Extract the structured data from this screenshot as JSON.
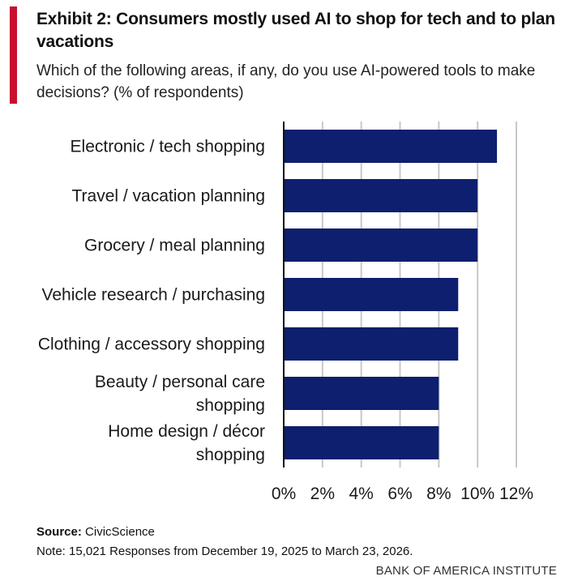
{
  "header": {
    "title": "Exhibit 2: Consumers mostly used AI to shop for tech and to plan vacations",
    "subtitle": "Which of the following areas, if any, do you use AI-powered tools to make decisions? (% of respondents)"
  },
  "footer": {
    "source_label": "Source:",
    "source_value": "CivicScience",
    "note": "Note: 15,021 Responses from December 19, 2025 to March 23, 2026.",
    "brand": "BANK OF AMERICA INSTITUTE"
  },
  "colors": {
    "bar": "#0d1f6e",
    "accent": "#c8102e",
    "grid": "#c8c8c8",
    "axis": "#111111"
  },
  "chart_data": {
    "type": "bar",
    "orientation": "horizontal",
    "title": "Exhibit 2: Consumers mostly used AI to shop for tech and to plan vacations",
    "subtitle": "Which of the following areas, if any, do you use AI-powered tools to make decisions? (% of respondents)",
    "categories": [
      [
        "Electronic / tech shopping"
      ],
      [
        "Travel / vacation planning"
      ],
      [
        "Grocery / meal planning"
      ],
      [
        "Vehicle research / purchasing"
      ],
      [
        "Clothing / accessory shopping"
      ],
      [
        "Beauty / personal care",
        "shopping"
      ],
      [
        "Home design / décor",
        "shopping"
      ]
    ],
    "values": [
      11,
      10,
      10,
      9,
      9,
      8,
      8
    ],
    "xlim": [
      0,
      12
    ],
    "xticks": [
      0,
      2,
      4,
      6,
      8,
      10,
      12
    ],
    "tick_labels": [
      "0%",
      "2%",
      "4%",
      "6%",
      "8%",
      "10%",
      "12%"
    ],
    "xlabel": "",
    "ylabel": "",
    "grid": true,
    "legend": "none"
  }
}
